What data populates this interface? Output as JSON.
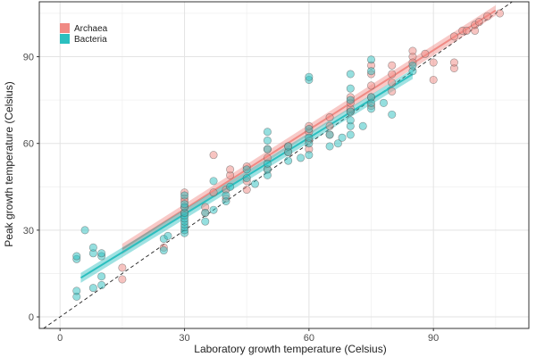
{
  "chart_data": {
    "type": "scatter",
    "xlabel": "Laboratory growth temperature (Celsius)",
    "ylabel": "Peak growth temperature (Celsius)",
    "xlim": [
      -5,
      113
    ],
    "ylim": [
      -4,
      109
    ],
    "x_ticks": [
      0,
      30,
      60,
      90
    ],
    "y_ticks": [
      0,
      30,
      60,
      90
    ],
    "grid": true,
    "legend_placement": "top-left",
    "reference_line": {
      "style": "dashed",
      "slope": 1,
      "intercept": 0,
      "color": "#222222"
    },
    "series": [
      {
        "name": "Archaea",
        "color": "#F08A84",
        "fit": {
          "x": [
            15,
            105
          ],
          "y": [
            23.5,
            106
          ],
          "band": 1.8
        },
        "points": [
          [
            15,
            17
          ],
          [
            15,
            13
          ],
          [
            25,
            24
          ],
          [
            30,
            36
          ],
          [
            30,
            38
          ],
          [
            30,
            41
          ],
          [
            30,
            43
          ],
          [
            30,
            40
          ],
          [
            35,
            36
          ],
          [
            35,
            38
          ],
          [
            37,
            56
          ],
          [
            37,
            43
          ],
          [
            40,
            41
          ],
          [
            40,
            44
          ],
          [
            41,
            49
          ],
          [
            41,
            51
          ],
          [
            45,
            47
          ],
          [
            45,
            52
          ],
          [
            45,
            44
          ],
          [
            50,
            51
          ],
          [
            50,
            55
          ],
          [
            50,
            58
          ],
          [
            55,
            57
          ],
          [
            55,
            59
          ],
          [
            60,
            58
          ],
          [
            60,
            61
          ],
          [
            60,
            64
          ],
          [
            60,
            66
          ],
          [
            65,
            63
          ],
          [
            65,
            66
          ],
          [
            65,
            69
          ],
          [
            70,
            71
          ],
          [
            70,
            72
          ],
          [
            70,
            74
          ],
          [
            70,
            76
          ],
          [
            75,
            73
          ],
          [
            75,
            76
          ],
          [
            75,
            80
          ],
          [
            75,
            84
          ],
          [
            75,
            87
          ],
          [
            80,
            84
          ],
          [
            80,
            81
          ],
          [
            80,
            87
          ],
          [
            80,
            78
          ],
          [
            85,
            90
          ],
          [
            85,
            88
          ],
          [
            85,
            92
          ],
          [
            88,
            91
          ],
          [
            90,
            88
          ],
          [
            90,
            82
          ],
          [
            95,
            86
          ],
          [
            95,
            88
          ],
          [
            95,
            97
          ],
          [
            97,
            99
          ],
          [
            98,
            99
          ],
          [
            100,
            99
          ],
          [
            100,
            101
          ],
          [
            103,
            104
          ],
          [
            106,
            105
          ],
          [
            101,
            102
          ]
        ]
      },
      {
        "name": "Bacteria",
        "color": "#2BBFBF",
        "fit": {
          "x": [
            5,
            85
          ],
          "y": [
            13.5,
            84
          ],
          "band": 1.7
        },
        "points": [
          [
            4,
            7
          ],
          [
            4,
            9
          ],
          [
            4,
            20
          ],
          [
            4,
            21
          ],
          [
            6,
            30
          ],
          [
            8,
            10
          ],
          [
            8,
            22
          ],
          [
            8,
            24
          ],
          [
            10,
            11
          ],
          [
            10,
            14
          ],
          [
            10,
            21
          ],
          [
            10,
            22
          ],
          [
            25,
            23
          ],
          [
            25,
            27
          ],
          [
            26,
            28
          ],
          [
            30,
            29
          ],
          [
            30,
            30
          ],
          [
            30,
            31
          ],
          [
            30,
            32
          ],
          [
            30,
            33
          ],
          [
            30,
            34
          ],
          [
            30,
            35
          ],
          [
            30,
            36
          ],
          [
            30,
            38
          ],
          [
            30,
            39
          ],
          [
            30,
            42
          ],
          [
            35,
            33
          ],
          [
            35,
            36
          ],
          [
            37,
            47
          ],
          [
            37,
            37
          ],
          [
            40,
            40
          ],
          [
            40,
            42
          ],
          [
            41,
            45
          ],
          [
            45,
            48
          ],
          [
            45,
            51
          ],
          [
            47,
            46
          ],
          [
            50,
            49
          ],
          [
            50,
            51
          ],
          [
            50,
            53
          ],
          [
            50,
            58
          ],
          [
            50,
            61
          ],
          [
            50,
            64
          ],
          [
            55,
            54
          ],
          [
            55,
            57
          ],
          [
            55,
            59
          ],
          [
            58,
            55
          ],
          [
            60,
            56
          ],
          [
            60,
            60
          ],
          [
            60,
            62
          ],
          [
            60,
            65
          ],
          [
            60,
            82
          ],
          [
            60,
            83
          ],
          [
            65,
            59
          ],
          [
            65,
            63
          ],
          [
            67,
            60
          ],
          [
            68,
            62
          ],
          [
            70,
            63
          ],
          [
            70,
            66
          ],
          [
            70,
            68
          ],
          [
            70,
            71
          ],
          [
            70,
            75
          ],
          [
            70,
            79
          ],
          [
            70,
            84
          ],
          [
            73,
            66
          ],
          [
            75,
            72
          ],
          [
            75,
            74
          ],
          [
            75,
            76
          ],
          [
            75,
            85
          ],
          [
            75,
            89
          ],
          [
            78,
            74
          ],
          [
            80,
            70
          ],
          [
            85,
            85
          ],
          [
            85,
            87
          ]
        ]
      }
    ]
  }
}
